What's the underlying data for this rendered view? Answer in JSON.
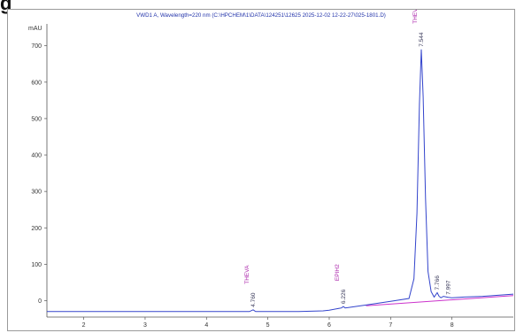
{
  "heading": "g",
  "chart_data": {
    "type": "line",
    "title": "VWD1 A, Wavelength=220 nm (C:\\HPCHEM\\1\\DATA\\124251\\12625 2025-12-02 12-22-27\\025-1801.D)",
    "yunit": "mAU",
    "xlabel": "",
    "ylabel": "mAU",
    "xlim": [
      1.4,
      9.0
    ],
    "ylim": [
      -45,
      760
    ],
    "xticks": [
      "2",
      "3",
      "4",
      "5",
      "6",
      "7",
      "8"
    ],
    "yticks": [
      "0",
      "100",
      "200",
      "300",
      "400",
      "500",
      "600",
      "700"
    ],
    "grid": false,
    "series": [
      {
        "name": "",
        "color": "#3344cc",
        "x": [
          1.4,
          2.0,
          3.0,
          4.0,
          4.5,
          4.7,
          4.76,
          4.8,
          4.86,
          5.0,
          5.5,
          5.9,
          6.0,
          6.2,
          6.23,
          6.26,
          6.35,
          6.6,
          7.0,
          7.3,
          7.38,
          7.43,
          7.47,
          7.5,
          7.53,
          7.57,
          7.61,
          7.66,
          7.71,
          7.76,
          7.79,
          7.82,
          7.86,
          7.94,
          8.0,
          8.2,
          8.5,
          9.0
        ],
        "y": [
          -30,
          -30,
          -30,
          -30,
          -30,
          -30,
          -25,
          -30,
          -30,
          -30,
          -30,
          -28,
          -26,
          -20,
          -16,
          -20,
          -18,
          -12,
          -2,
          6,
          60,
          240,
          540,
          690,
          560,
          280,
          80,
          25,
          10,
          22,
          12,
          8,
          12,
          9,
          8,
          10,
          12,
          18
        ]
      }
    ],
    "peak_labels": [
      {
        "x": 4.76,
        "y": -25,
        "time": "4.760",
        "compound": "THEVA"
      },
      {
        "x": 6.23,
        "y": -16,
        "time": "6.226",
        "compound": "EPIH2"
      },
      {
        "x": 7.5,
        "y": 690,
        "time": "7.544",
        "compound": "THEVA"
      },
      {
        "x": 7.76,
        "y": 22,
        "time": "7.766",
        "compound": ""
      },
      {
        "x": 7.94,
        "y": 9,
        "time": "7.997",
        "compound": ""
      }
    ],
    "baseline": {
      "x": [
        6.6,
        9.0
      ],
      "y": [
        -14,
        14
      ],
      "color": "#cc33cc"
    }
  }
}
